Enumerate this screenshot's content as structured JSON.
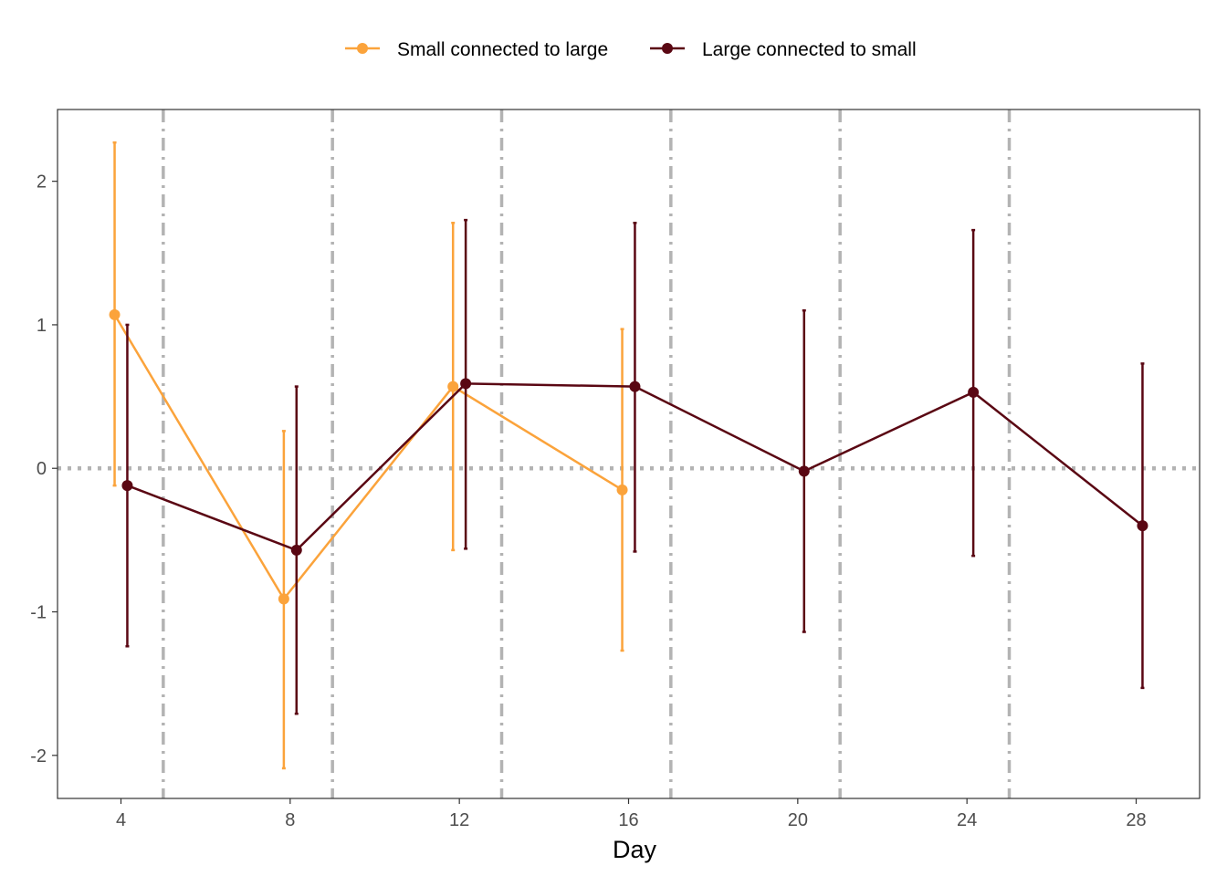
{
  "chart_data": {
    "type": "line",
    "title": "",
    "xlabel": "Day",
    "ylabel": "",
    "xlim": [
      2.5,
      29.5
    ],
    "ylim": [
      -2.3,
      2.5
    ],
    "x_ticks": [
      4,
      8,
      12,
      16,
      20,
      24,
      28
    ],
    "y_ticks": [
      -2,
      -1,
      0,
      1,
      2
    ],
    "x_tick_labels": [
      "4",
      "8",
      "12",
      "16",
      "20",
      "24",
      "28"
    ],
    "y_tick_labels": [
      "-2",
      "-1",
      "0",
      "1",
      "2"
    ],
    "grid": false,
    "legend_position": "top",
    "reference_lines": {
      "horizontal_dotted_y": 0,
      "vertical_dashdot_x": [
        5,
        9,
        13,
        17,
        21,
        25
      ],
      "color": "#b3b3b3"
    },
    "series": [
      {
        "name": "Small connected to large",
        "color": "#FBA33B",
        "x": [
          4,
          8,
          12,
          16
        ],
        "y": [
          1.07,
          -0.91,
          0.57,
          -0.15
        ],
        "lower": [
          -0.12,
          -2.09,
          -0.57,
          -1.27
        ],
        "upper": [
          2.27,
          0.26,
          1.71,
          0.97
        ]
      },
      {
        "name": "Large connected to small",
        "color": "#5A0713",
        "x": [
          4,
          8,
          12,
          16,
          20,
          24,
          28
        ],
        "y": [
          -0.12,
          -0.57,
          0.59,
          0.57,
          -0.02,
          0.53,
          -0.4
        ],
        "lower": [
          -1.24,
          -1.71,
          -0.56,
          -0.58,
          -1.14,
          -0.61,
          -1.53
        ],
        "upper": [
          1.0,
          0.57,
          1.73,
          1.71,
          1.1,
          1.66,
          0.73
        ]
      }
    ]
  }
}
